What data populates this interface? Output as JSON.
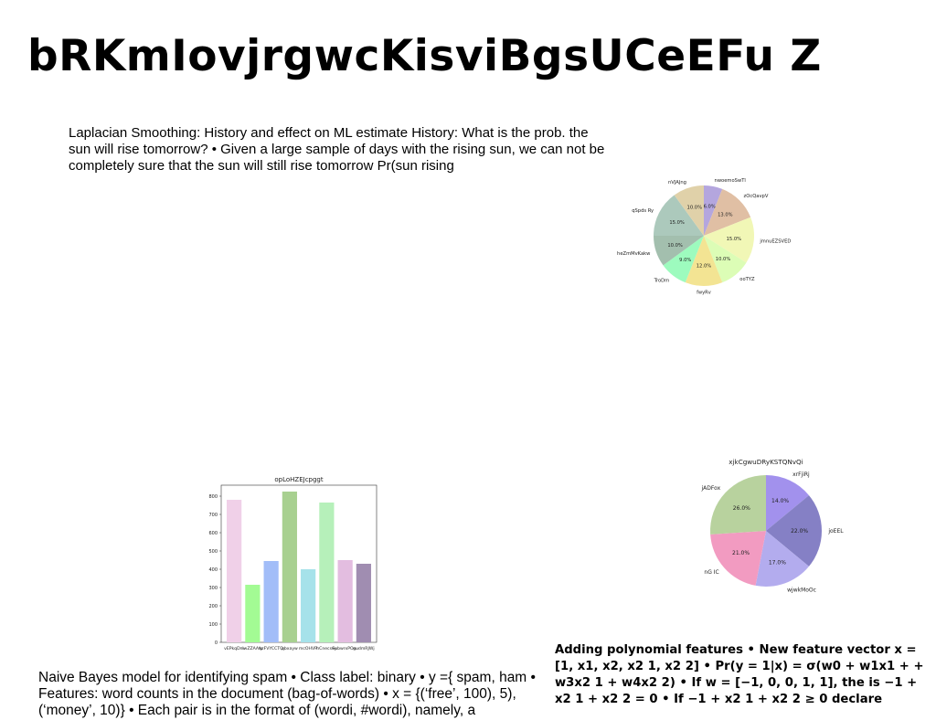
{
  "title": "bRKmIovjrgwcKisviBgsUCeEFu Z",
  "paragraphs": {
    "p1": "Laplacian Smoothing: History and effect on ML estimate History: What is the prob. the sun will rise tomorrow? • Given a large sample of days with the rising sun, we can not be completely sure that the sun will still rise tomorrow Pr(sun rising",
    "p2": "Naive Bayes model for identifying spam • Class label: binary • y ={ spam, ham • Features: word counts in the document (bag-of-words) • x = {(‘free’, 100), 5), (‘money’, 10)} • Each pair is in the format of (wordi, #wordi), namely, a",
    "p3": "Adding polynomial features • New feature vector x = [1, x1, x2, x2 1, x2 2] • Pr(y = 1|x) = σ(w0 + w1x1 + + w3x2 1 + w4x2 2) • If w = [−1, 0, 0, 1, 1], the is −1 + x2 1 + x2 2 = 0 • If −1 + x2 1 + x2 2 ≥ 0 declare"
  },
  "chart_data": [
    {
      "type": "pie",
      "title": "",
      "labels": [
        "nwoemoSwTl",
        "zOcQavpV",
        "jmnuEZSVED",
        "ooTYZ",
        "fwyRv",
        "TroDm",
        "heZmMvKakw",
        "qSpds Ry",
        "nVJAJng"
      ],
      "values": [
        6.0,
        13.0,
        15.0,
        10.0,
        12.0,
        9.0,
        10.0,
        15.0,
        10.0
      ],
      "value_labels": [
        "6.0%",
        "13.0%",
        "15.0%",
        "10.0%",
        "12.0%",
        "9.0%",
        "10.0%",
        "15.0%",
        "10.0%"
      ],
      "colors": [
        "#b4a6de",
        "#e0bfa4",
        "#f1f7b6",
        "#dcfdb6",
        "#f3e493",
        "#9dfbbe",
        "#a3bfae",
        "#acc9bc",
        "#e0d1a9"
      ]
    },
    {
      "type": "bar",
      "title": "opLoHZEJcpggt",
      "categories": [
        "vEPkqDm",
        "iwZZAAty",
        "kzFVYCCTQ",
        "qbxayw",
        "mcOHVR",
        "hCnecsey",
        "SubwrxPOsu",
        "gudmRJWj"
      ],
      "values": [
        780,
        315,
        445,
        825,
        400,
        765,
        450,
        430
      ],
      "ylim": [
        0,
        860
      ],
      "yticks": [
        0,
        100,
        200,
        300,
        400,
        500,
        600,
        700,
        800
      ],
      "colors": [
        "#f0d0e8",
        "#a3fb94",
        "#a2bdf8",
        "#a8d090",
        "#a6e2ea",
        "#b6f0ba",
        "#e3bde0",
        "#a08db1"
      ]
    },
    {
      "type": "pie",
      "title": "xjkCgwuDRyKSTQNvQi",
      "labels": [
        "xrFjiRj",
        "joEEL",
        "wjwkMoOc",
        "nG IC",
        "jADFox"
      ],
      "values": [
        14.0,
        22.0,
        17.0,
        21.0,
        26.0
      ],
      "value_labels": [
        "14.0%",
        "22.0%",
        "17.0%",
        "21.0%",
        "26.0%"
      ],
      "colors": [
        "#a291ed",
        "#8580c5",
        "#b3acee",
        "#f29bc1",
        "#b8d29e"
      ]
    }
  ]
}
